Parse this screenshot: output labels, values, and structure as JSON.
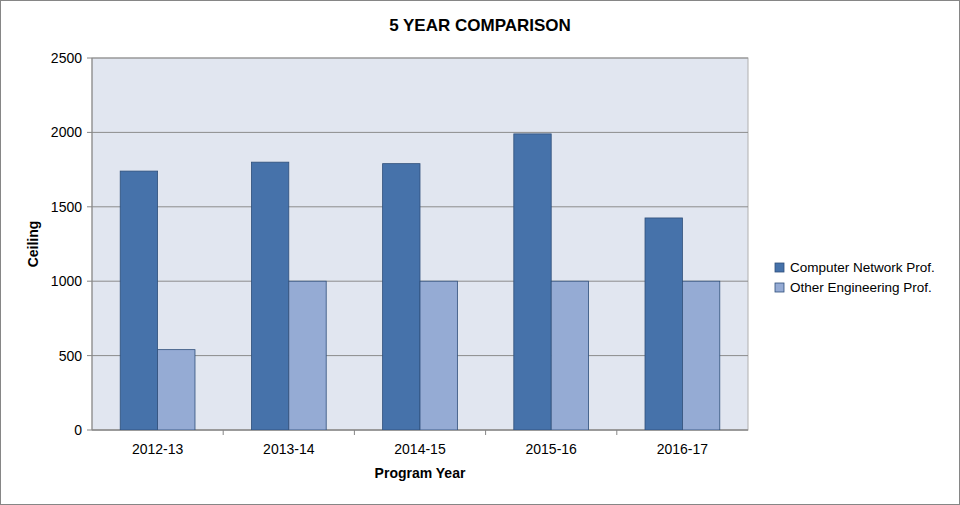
{
  "chart_data": {
    "type": "bar",
    "title": "5 YEAR COMPARISON",
    "x_label": "Program Year",
    "y_label": "Ceiling",
    "categories": [
      "2012-13",
      "2013-14",
      "2014-15",
      "2015-16",
      "2016-17"
    ],
    "series": [
      {
        "name": "Computer Network Prof.",
        "color": "#4672aa",
        "values": [
          1740,
          1800,
          1790,
          1990,
          1425
        ]
      },
      {
        "name": "Other Engineering Prof.",
        "color": "#95abd4",
        "values": [
          540,
          1000,
          1000,
          1000,
          1000
        ]
      }
    ],
    "ylim": [
      0,
      2500
    ],
    "yticks": [
      0,
      500,
      1000,
      1500,
      2000,
      2500
    ],
    "grid": true,
    "legend": "right"
  }
}
